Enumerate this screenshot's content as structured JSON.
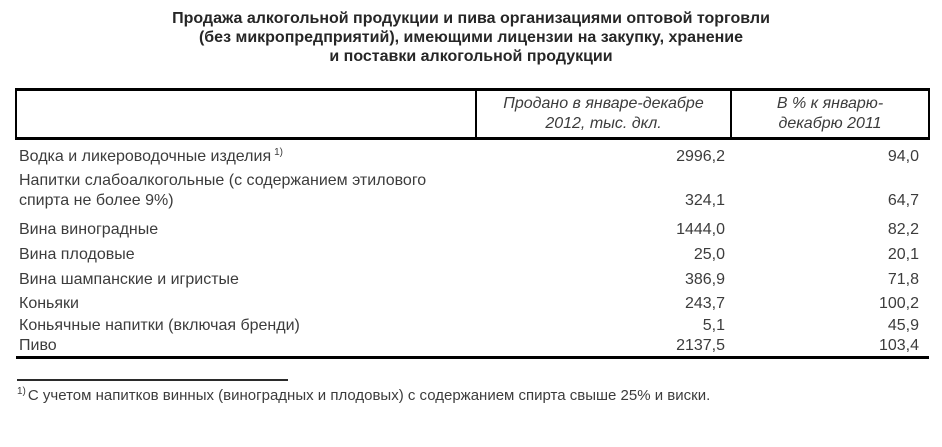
{
  "title": {
    "lines": [
      "Продажа алкогольной продукции и пива организациями оптовой торговли",
      "(без микропредприятий), имеющими лицензии на закупку, хранение",
      "и поставки алкогольной продукции"
    ]
  },
  "table": {
    "header": {
      "product": "",
      "sold_lines": [
        "Продано в январе-декабре",
        "2012, тыс. дкл."
      ],
      "percent_lines": [
        "В % к январю-",
        "декабрю 2011"
      ]
    },
    "rows": [
      {
        "label": "Водка и ликероводочные изделия",
        "sup": "1)",
        "sold": "2996,2",
        "percent": "94,0"
      },
      {
        "label": "Напитки слабоалкогольные (с содержанием этилового спирта не более 9%)",
        "sold": "324,1",
        "percent": "64,7"
      },
      {
        "label": "Вина виноградные",
        "sold": "1444,0",
        "percent": "82,2"
      },
      {
        "label": "Вина плодовые",
        "sold": "25,0",
        "percent": "20,1"
      },
      {
        "label": "Вина шампанские и игристые",
        "sold": "386,9",
        "percent": "71,8"
      },
      {
        "label": "Коньяки",
        "sold": "243,7",
        "percent": "100,2"
      },
      {
        "label": "Коньячные напитки (включая бренди)",
        "sold": "5,1",
        "percent": "45,9"
      },
      {
        "label": "Пиво",
        "sold": "2137,5",
        "percent": "103,4"
      }
    ]
  },
  "footnote": {
    "marker": "1)",
    "text": "С учетом напитков винных (виноградных и плодовых) с содержанием спирта свыше 25% и виски."
  }
}
